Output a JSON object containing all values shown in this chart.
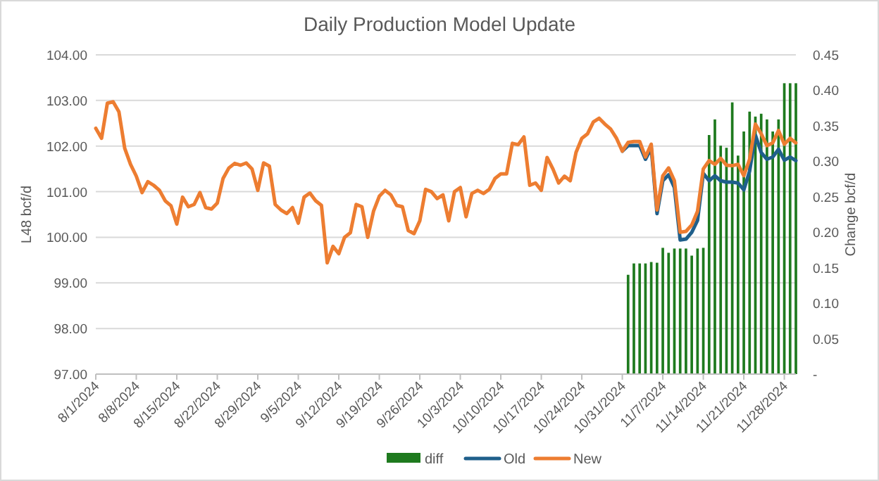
{
  "chart_data": {
    "type": "line",
    "title": "Daily Production Model Update",
    "ylabel": "L48 bcf/d",
    "y2label": "Change bcf/d",
    "x": [
      "2024-08-01",
      "2024-08-02",
      "2024-08-03",
      "2024-08-04",
      "2024-08-05",
      "2024-08-06",
      "2024-08-07",
      "2024-08-08",
      "2024-08-09",
      "2024-08-10",
      "2024-08-11",
      "2024-08-12",
      "2024-08-13",
      "2024-08-14",
      "2024-08-15",
      "2024-08-16",
      "2024-08-17",
      "2024-08-18",
      "2024-08-19",
      "2024-08-20",
      "2024-08-21",
      "2024-08-22",
      "2024-08-23",
      "2024-08-24",
      "2024-08-25",
      "2024-08-26",
      "2024-08-27",
      "2024-08-28",
      "2024-08-29",
      "2024-08-30",
      "2024-08-31",
      "2024-09-01",
      "2024-09-02",
      "2024-09-03",
      "2024-09-04",
      "2024-09-05",
      "2024-09-06",
      "2024-09-07",
      "2024-09-08",
      "2024-09-09",
      "2024-09-10",
      "2024-09-11",
      "2024-09-12",
      "2024-09-13",
      "2024-09-14",
      "2024-09-15",
      "2024-09-16",
      "2024-09-17",
      "2024-09-18",
      "2024-09-19",
      "2024-09-20",
      "2024-09-21",
      "2024-09-22",
      "2024-09-23",
      "2024-09-24",
      "2024-09-25",
      "2024-09-26",
      "2024-09-27",
      "2024-09-28",
      "2024-09-29",
      "2024-09-30",
      "2024-10-01",
      "2024-10-02",
      "2024-10-03",
      "2024-10-04",
      "2024-10-05",
      "2024-10-06",
      "2024-10-07",
      "2024-10-08",
      "2024-10-09",
      "2024-10-10",
      "2024-10-11",
      "2024-10-12",
      "2024-10-13",
      "2024-10-14",
      "2024-10-15",
      "2024-10-16",
      "2024-10-17",
      "2024-10-18",
      "2024-10-19",
      "2024-10-20",
      "2024-10-21",
      "2024-10-22",
      "2024-10-23",
      "2024-10-24",
      "2024-10-25",
      "2024-10-26",
      "2024-10-27",
      "2024-10-28",
      "2024-10-29",
      "2024-10-30",
      "2024-10-31",
      "2024-11-01",
      "2024-11-02",
      "2024-11-03",
      "2024-11-04",
      "2024-11-05",
      "2024-11-06",
      "2024-11-07",
      "2024-11-08",
      "2024-11-09",
      "2024-11-10",
      "2024-11-11",
      "2024-11-12",
      "2024-11-13",
      "2024-11-14",
      "2024-11-15",
      "2024-11-16",
      "2024-11-17",
      "2024-11-18",
      "2024-11-19",
      "2024-11-20",
      "2024-11-21",
      "2024-11-22",
      "2024-11-23",
      "2024-11-24",
      "2024-11-25",
      "2024-11-26",
      "2024-11-27",
      "2024-11-28",
      "2024-11-29",
      "2024-11-30"
    ],
    "series": [
      {
        "name": "diff",
        "type": "bar",
        "axis": "y2",
        "color": "#1e7a1e",
        "values": [
          null,
          null,
          null,
          null,
          null,
          null,
          null,
          null,
          null,
          null,
          null,
          null,
          null,
          null,
          null,
          null,
          null,
          null,
          null,
          null,
          null,
          null,
          null,
          null,
          null,
          null,
          null,
          null,
          null,
          null,
          null,
          null,
          null,
          null,
          null,
          null,
          null,
          null,
          null,
          null,
          null,
          null,
          null,
          null,
          null,
          null,
          null,
          null,
          null,
          null,
          null,
          null,
          null,
          null,
          null,
          null,
          null,
          null,
          null,
          null,
          null,
          null,
          null,
          null,
          null,
          null,
          null,
          null,
          null,
          null,
          null,
          null,
          null,
          null,
          null,
          null,
          null,
          null,
          null,
          null,
          null,
          null,
          null,
          null,
          null,
          null,
          null,
          null,
          null,
          null,
          null,
          null,
          0.14,
          0.156,
          0.156,
          0.156,
          0.158,
          0.157,
          0.178,
          0.171,
          0.177,
          0.177,
          0.177,
          0.167,
          0.177,
          0.178,
          0.337,
          0.359,
          0.322,
          0.319,
          0.383,
          0.308,
          0.342,
          0.37,
          0.363,
          0.367,
          0.359,
          0.342,
          0.359,
          0.41,
          0.41,
          0.41
        ]
      },
      {
        "name": "Old",
        "color": "#1f5f8b",
        "values": [
          null,
          null,
          null,
          null,
          null,
          null,
          null,
          null,
          null,
          null,
          null,
          null,
          null,
          null,
          null,
          null,
          null,
          null,
          null,
          null,
          null,
          null,
          null,
          null,
          null,
          null,
          null,
          null,
          null,
          null,
          null,
          null,
          null,
          null,
          null,
          null,
          null,
          null,
          null,
          null,
          null,
          null,
          null,
          null,
          null,
          null,
          null,
          null,
          null,
          null,
          null,
          null,
          null,
          null,
          null,
          null,
          null,
          null,
          null,
          null,
          null,
          null,
          null,
          null,
          null,
          null,
          null,
          null,
          null,
          null,
          null,
          null,
          null,
          null,
          null,
          null,
          null,
          null,
          null,
          null,
          null,
          null,
          null,
          null,
          null,
          null,
          null,
          null,
          null,
          null,
          null,
          101.89,
          102.01,
          102.01,
          102.01,
          101.71,
          101.96,
          100.52,
          101.24,
          101.37,
          101.09,
          99.94,
          99.96,
          100.11,
          100.37,
          101.4,
          101.24,
          101.35,
          101.24,
          101.21,
          101.21,
          101.19,
          101.04,
          101.45,
          102.24,
          101.86,
          101.71,
          101.76,
          101.93,
          101.69,
          101.76,
          101.68
        ]
      },
      {
        "name": "New",
        "color": "#ed7d31",
        "values": [
          102.39,
          102.17,
          102.94,
          102.97,
          102.75,
          101.95,
          101.6,
          101.34,
          100.98,
          101.22,
          101.14,
          101.03,
          100.8,
          100.69,
          100.29,
          100.88,
          100.67,
          100.72,
          100.98,
          100.65,
          100.62,
          100.75,
          101.29,
          101.52,
          101.62,
          101.58,
          101.63,
          101.5,
          101.03,
          101.63,
          101.56,
          100.72,
          100.6,
          100.52,
          100.65,
          100.31,
          100.88,
          100.97,
          100.8,
          100.7,
          99.44,
          99.8,
          99.64,
          100.0,
          100.1,
          100.72,
          100.67,
          100.0,
          100.57,
          100.9,
          101.03,
          100.93,
          100.7,
          100.67,
          100.15,
          100.08,
          100.36,
          101.05,
          101.0,
          100.85,
          100.93,
          100.36,
          101.0,
          101.09,
          100.45,
          100.96,
          101.03,
          100.96,
          101.05,
          101.29,
          101.39,
          101.39,
          102.06,
          102.03,
          102.2,
          101.14,
          101.19,
          101.03,
          101.75,
          101.5,
          101.19,
          101.34,
          101.24,
          101.86,
          102.17,
          102.27,
          102.53,
          102.61,
          102.48,
          102.37,
          102.17,
          101.89,
          102.08,
          102.1,
          102.1,
          101.76,
          102.04,
          100.6,
          101.35,
          101.52,
          101.24,
          100.11,
          100.13,
          100.27,
          100.57,
          101.5,
          101.68,
          101.6,
          101.73,
          101.58,
          101.57,
          101.6,
          101.35,
          101.71,
          102.48,
          102.27,
          102.01,
          102.07,
          102.34,
          102.04,
          102.17,
          102.07
        ]
      }
    ],
    "xlim": [
      "2024-08-01",
      "2024-11-30"
    ],
    "xticks": [
      {
        "value": "2024-08-01",
        "label": "8/1/2024"
      },
      {
        "value": "2024-08-08",
        "label": "8/8/2024"
      },
      {
        "value": "2024-08-15",
        "label": "8/15/2024"
      },
      {
        "value": "2024-08-22",
        "label": "8/22/2024"
      },
      {
        "value": "2024-08-29",
        "label": "8/29/2024"
      },
      {
        "value": "2024-09-05",
        "label": "9/5/2024"
      },
      {
        "value": "2024-09-12",
        "label": "9/12/2024"
      },
      {
        "value": "2024-09-19",
        "label": "9/19/2024"
      },
      {
        "value": "2024-09-26",
        "label": "9/26/2024"
      },
      {
        "value": "2024-10-03",
        "label": "10/3/2024"
      },
      {
        "value": "2024-10-10",
        "label": "10/10/2024"
      },
      {
        "value": "2024-10-17",
        "label": "10/17/2024"
      },
      {
        "value": "2024-10-24",
        "label": "10/24/2024"
      },
      {
        "value": "2024-10-31",
        "label": "10/31/2024"
      },
      {
        "value": "2024-11-07",
        "label": "11/7/2024"
      },
      {
        "value": "2024-11-14",
        "label": "11/14/2024"
      },
      {
        "value": "2024-11-21",
        "label": "11/21/2024"
      },
      {
        "value": "2024-11-28",
        "label": "11/28/2024"
      }
    ],
    "ylim": [
      97,
      104
    ],
    "yticks": [
      {
        "value": 97,
        "label": "97.00"
      },
      {
        "value": 98,
        "label": "98.00"
      },
      {
        "value": 99,
        "label": "99.00"
      },
      {
        "value": 100,
        "label": "100.00"
      },
      {
        "value": 101,
        "label": "101.00"
      },
      {
        "value": 102,
        "label": "102.00"
      },
      {
        "value": 103,
        "label": "103.00"
      },
      {
        "value": 104,
        "label": "104.00"
      }
    ],
    "y2lim": [
      0,
      0.45
    ],
    "y2ticks": [
      {
        "value": 0,
        "label": "-"
      },
      0.05,
      {
        "value": 0.1,
        "label": "0.10"
      },
      0.15,
      {
        "value": 0.2,
        "label": "0.20"
      },
      0.25,
      {
        "value": 0.3,
        "label": "0.30"
      },
      0.35,
      {
        "value": 0.4,
        "label": "0.40"
      },
      0.45
    ],
    "grid": "y",
    "legend": "bottom"
  }
}
